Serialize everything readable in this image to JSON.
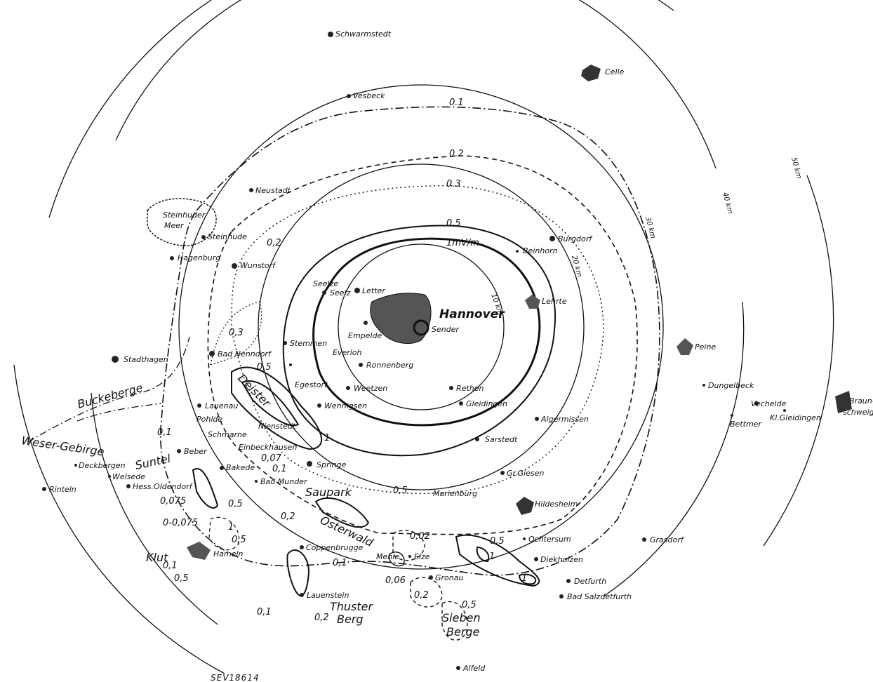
{
  "map": {
    "center_label": "Hannover",
    "transmitter_label": "Sender",
    "figure_code": "SEV18614",
    "ring_labels": [
      "10 km",
      "20 km",
      "30 km",
      "40 km",
      "50 km"
    ],
    "contour_labels": {
      "c1": "1mV/m",
      "c05": "0.5",
      "c03": "0.3",
      "c02": "0.2",
      "c01": "0.1",
      "misc": [
        "0,3",
        "0,2",
        "0,5",
        "0,5",
        "0,1",
        "0,07",
        "0,075",
        "0-0,075",
        "0,1",
        "0,5",
        "0,5",
        "0,2",
        "0,1",
        "0,06",
        "0,02",
        "0,5",
        "0,5",
        "0,5",
        "1",
        "1",
        "1",
        "1",
        "0,1",
        "0,2",
        "0,1",
        "0,2",
        "0,5",
        "0,3",
        "0,5",
        "0,5"
      ]
    },
    "towns": [
      "Schwarmstedt",
      "Celle",
      "Vesbeck",
      "Neustadt",
      "Steinhude",
      "Hagenburg",
      "Wunstorf",
      "Burgdorf",
      "Beinhorn",
      "Seelze",
      "Seelz",
      "Letter",
      "Lehrte",
      "Empelde",
      "Everloh",
      "Stemmen",
      "Bad Nenndorf",
      "Ronnenberg",
      "Egestorf",
      "Weetzen",
      "Wennigsen",
      "Rethen",
      "Gleidingen",
      "Stadthagen",
      "Lauenau",
      "Pohlde",
      "Nienstedt",
      "Schmarne",
      "Einbeckhausen",
      "Springe",
      "Bakede",
      "Beber",
      "Deckbergen",
      "Welsede",
      "Hess.Oldendorf",
      "Rinteln",
      "Bad Munder",
      "Algermissen",
      "Sarstedt",
      "Gr.Giesen",
      "Marienburg",
      "Hildesheim",
      "Peine",
      "Dungelbeck",
      "Bettmer",
      "Vechelde",
      "Kl.Gleidingen",
      "Braun-",
      "schweig",
      "Coppenbrugge",
      "Mehle",
      "Elze",
      "Gronau",
      "Lauenstein",
      "Hameln",
      "Ochtersum",
      "Diekholzen",
      "Detfurth",
      "Bad Salzdetfurth",
      "Grasdorf",
      "Alfeld",
      "Steinhuder",
      "Meer"
    ],
    "regions": [
      "Buckeberge",
      "Weser-Gebirge",
      "Suntel",
      "Deister",
      "Saupark",
      "Osterwald",
      "Klut",
      "Thuster",
      "Berg",
      "Sieben",
      "Berge"
    ]
  }
}
